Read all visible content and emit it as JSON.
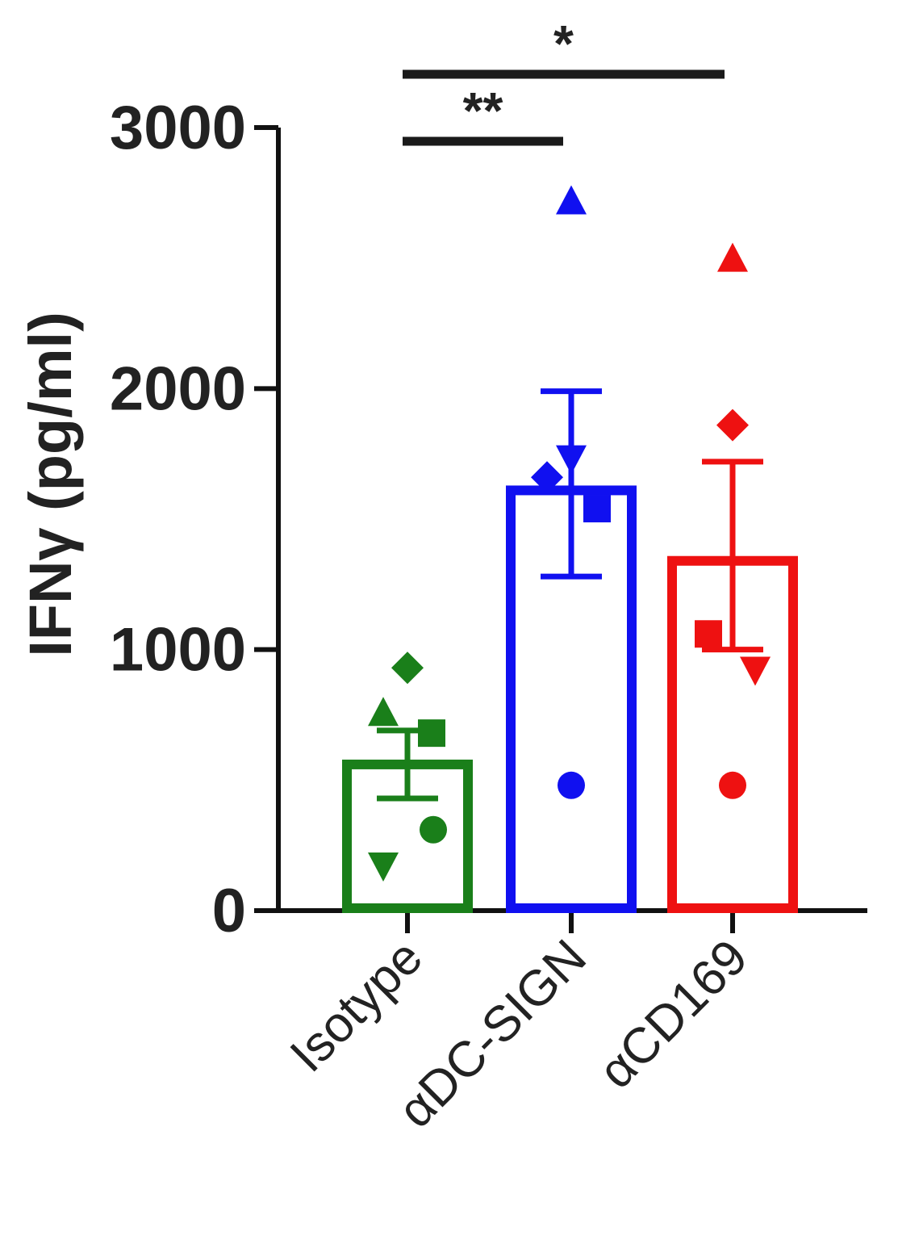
{
  "chart_data": {
    "type": "bar",
    "ylabel": "IFNγ (pg/ml)",
    "ylim": [
      0,
      3000
    ],
    "yticks": [
      0,
      1000,
      2000,
      3000
    ],
    "categories": [
      "Isotype",
      "αDC-SIGN",
      "αCD169"
    ],
    "bars": [
      {
        "category": "Isotype",
        "color": "#1a7f1a",
        "mean": 560,
        "err_low": 430,
        "err_high": 690,
        "points": [
          {
            "shape": "diamond",
            "value": 930
          },
          {
            "shape": "triangle-up",
            "value": 760
          },
          {
            "shape": "square",
            "value": 680
          },
          {
            "shape": "circle",
            "value": 310
          },
          {
            "shape": "triangle-down",
            "value": 170
          }
        ]
      },
      {
        "category": "αDC-SIGN",
        "color": "#1010f0",
        "mean": 1610,
        "err_low": 1280,
        "err_high": 1990,
        "points": [
          {
            "shape": "triangle-up",
            "value": 2720
          },
          {
            "shape": "triangle-down",
            "value": 1730
          },
          {
            "shape": "diamond",
            "value": 1660
          },
          {
            "shape": "square",
            "value": 1540
          },
          {
            "shape": "circle",
            "value": 480
          }
        ]
      },
      {
        "category": "αCD169",
        "color": "#ee1111",
        "mean": 1340,
        "err_low": 1000,
        "err_high": 1720,
        "points": [
          {
            "shape": "triangle-up",
            "value": 2500
          },
          {
            "shape": "diamond",
            "value": 1860
          },
          {
            "shape": "square",
            "value": 1060
          },
          {
            "shape": "triangle-down",
            "value": 920
          },
          {
            "shape": "circle",
            "value": 480
          }
        ]
      }
    ],
    "significance": [
      {
        "from": "Isotype",
        "to": "αCD169",
        "label": "*"
      },
      {
        "from": "Isotype",
        "to": "αDC-SIGN",
        "label": "**"
      }
    ]
  }
}
